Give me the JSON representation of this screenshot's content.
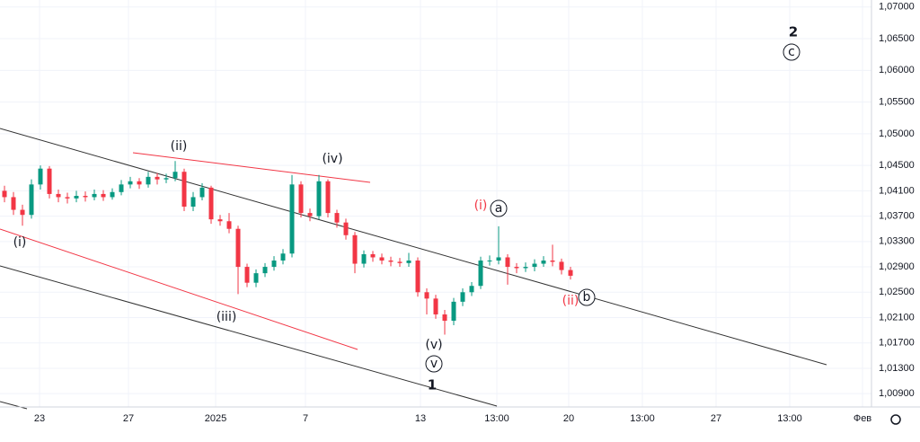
{
  "chart_data": {
    "type": "candlestick",
    "x": [
      0,
      1,
      2,
      3,
      4,
      5,
      6,
      7,
      8,
      9,
      10,
      11,
      12,
      13,
      14,
      15,
      16,
      17,
      18,
      19,
      20,
      21,
      22,
      23,
      24,
      25,
      26,
      27,
      28,
      29,
      30,
      31,
      32,
      33,
      34,
      35,
      36,
      37,
      38,
      39,
      40,
      41,
      42,
      43,
      44,
      45,
      46,
      47,
      48,
      49,
      50,
      51,
      52,
      53,
      54,
      55,
      56,
      57,
      58,
      59,
      60,
      61,
      62,
      63
    ],
    "open": [
      1.041,
      1.04,
      1.038,
      1.0372,
      1.042,
      1.0445,
      1.0405,
      1.04,
      1.0398,
      1.0402,
      1.04,
      1.0405,
      1.04,
      1.0408,
      1.042,
      1.0425,
      1.042,
      1.0432,
      1.0428,
      1.043,
      1.044,
      1.0385,
      1.04,
      1.0415,
      1.0365,
      1.0362,
      1.035,
      1.029,
      1.0265,
      1.028,
      1.029,
      1.03,
      1.0311,
      1.042,
      1.0375,
      1.037,
      1.0425,
      1.0375,
      1.036,
      1.034,
      1.0295,
      1.031,
      1.0305,
      1.03,
      1.0298,
      1.0296,
      1.03,
      1.025,
      1.024,
      1.0215,
      1.0205,
      1.0235,
      1.025,
      1.026,
      1.03,
      1.03,
      1.0305,
      1.029,
      1.0288,
      1.029,
      1.0295,
      1.03,
      1.0298,
      1.0285
    ],
    "high": [
      1.0418,
      1.0408,
      1.0388,
      1.0428,
      1.045,
      1.0449,
      1.0412,
      1.0407,
      1.041,
      1.0409,
      1.0412,
      1.0411,
      1.0414,
      1.0427,
      1.0432,
      1.043,
      1.044,
      1.0438,
      1.0437,
      1.0457,
      1.0445,
      1.0408,
      1.0422,
      1.0418,
      1.0372,
      1.0375,
      1.0355,
      1.0295,
      1.0286,
      1.0296,
      1.0307,
      1.0318,
      1.0435,
      1.0425,
      1.0382,
      1.0435,
      1.0428,
      1.038,
      1.0366,
      1.0345,
      1.0316,
      1.0315,
      1.0311,
      1.0306,
      1.0304,
      1.0312,
      1.0305,
      1.0256,
      1.0246,
      1.0222,
      1.0241,
      1.0256,
      1.0266,
      1.0306,
      1.0308,
      1.0354,
      1.031,
      1.0296,
      1.0297,
      1.0302,
      1.0307,
      1.0325,
      1.0303,
      1.029
    ],
    "low": [
      1.0392,
      1.0372,
      1.0355,
      1.0366,
      1.0412,
      1.0398,
      1.0392,
      1.039,
      1.0392,
      1.0393,
      1.0395,
      1.0394,
      1.0396,
      1.0403,
      1.0414,
      1.0413,
      1.0415,
      1.042,
      1.0422,
      1.0425,
      1.0378,
      1.0378,
      1.0395,
      1.0358,
      1.0355,
      1.0343,
      1.0247,
      1.0258,
      1.0258,
      1.0274,
      1.0284,
      1.0294,
      1.0305,
      1.0368,
      1.0362,
      1.0365,
      1.0368,
      1.0352,
      1.0333,
      1.028,
      1.0289,
      1.0298,
      1.0294,
      1.0291,
      1.029,
      1.029,
      1.0243,
      1.0215,
      1.0208,
      1.0183,
      1.0198,
      1.0228,
      1.0244,
      1.0255,
      1.0292,
      1.0294,
      1.0262,
      1.028,
      1.0282,
      1.0283,
      1.029,
      1.0291,
      1.0278,
      1.027
    ],
    "close": [
      1.04,
      1.038,
      1.0372,
      1.042,
      1.0445,
      1.0405,
      1.04,
      1.0398,
      1.0402,
      1.04,
      1.0405,
      1.04,
      1.0408,
      1.042,
      1.0425,
      1.042,
      1.0432,
      1.0428,
      1.043,
      1.044,
      1.0385,
      1.04,
      1.0415,
      1.0365,
      1.0362,
      1.035,
      1.029,
      1.0265,
      1.028,
      1.029,
      1.03,
      1.0311,
      1.042,
      1.0375,
      1.037,
      1.0425,
      1.0375,
      1.036,
      1.034,
      1.0295,
      1.031,
      1.0305,
      1.03,
      1.0298,
      1.0296,
      1.03,
      1.025,
      1.024,
      1.0215,
      1.0205,
      1.0235,
      1.025,
      1.026,
      1.03,
      1.03,
      1.0305,
      1.029,
      1.0288,
      1.029,
      1.0295,
      1.03,
      1.0298,
      1.0285,
      1.0276
    ],
    "up_color": "#089981",
    "down_color": "#f23645",
    "xlim": [
      -0.5,
      96.5
    ],
    "xticks": [
      {
        "value": 3.9,
        "label": "23"
      },
      {
        "value": 13.8,
        "label": "27"
      },
      {
        "value": 23.5,
        "label": "2025"
      },
      {
        "value": 33.5,
        "label": "7"
      },
      {
        "value": 46.3,
        "label": "13"
      },
      {
        "value": 54.8,
        "label": "13:00"
      },
      {
        "value": 62.8,
        "label": "20"
      },
      {
        "value": 71,
        "label": "13:00"
      },
      {
        "value": 79.2,
        "label": "27"
      },
      {
        "value": 87.4,
        "label": "13:00"
      },
      {
        "value": 95.5,
        "label": "Фев"
      }
    ],
    "ylim": [
      1.0069,
      1.0711
    ],
    "yticks": [
      {
        "value": 1.07,
        "label": "1,07000"
      },
      {
        "value": 1.065,
        "label": "1,06500"
      },
      {
        "value": 1.06,
        "label": "1,06000"
      },
      {
        "value": 1.055,
        "label": "1,05500"
      },
      {
        "value": 1.05,
        "label": "1,05000"
      },
      {
        "value": 1.045,
        "label": "1,04500"
      },
      {
        "value": 1.041,
        "label": "1,04100"
      },
      {
        "value": 1.037,
        "label": "1,03700"
      },
      {
        "value": 1.033,
        "label": "1,03300"
      },
      {
        "value": 1.029,
        "label": "1,02900"
      },
      {
        "value": 1.025,
        "label": "1,02500"
      },
      {
        "value": 1.021,
        "label": "1,02100"
      },
      {
        "value": 1.017,
        "label": "1,01700"
      },
      {
        "value": 1.013,
        "label": "1,01300"
      },
      {
        "value": 1.009,
        "label": "1,00900"
      }
    ],
    "grid": true,
    "annotations": [
      "(ii)",
      "(iv)",
      "(i)",
      "(iii)",
      "(v)",
      "v",
      "1",
      "(i)",
      "a",
      "(ii)",
      "b",
      "2",
      "c"
    ]
  }
}
